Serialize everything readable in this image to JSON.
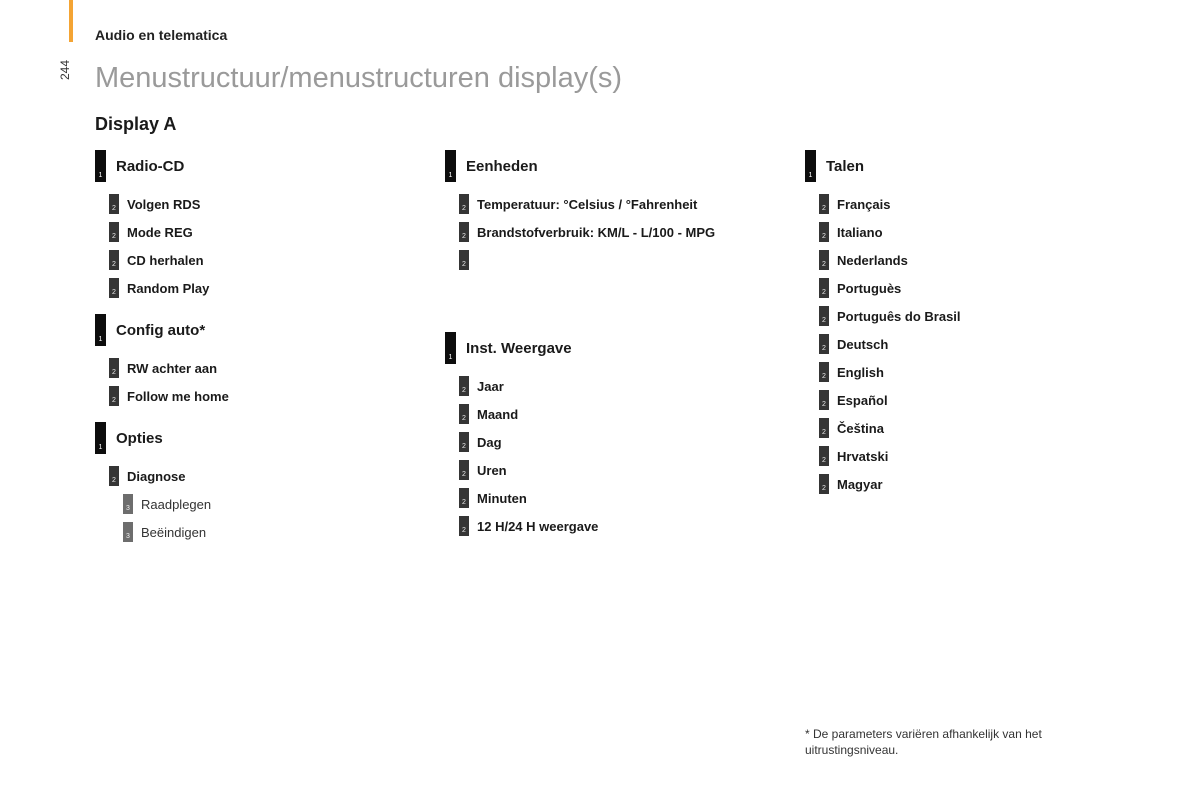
{
  "page_number": "244",
  "section_header": "Audio en telematica",
  "main_title": "Menustructuur/menustructuren display(s)",
  "display_title": "Display A",
  "columns": [
    {
      "groups": [
        {
          "title": "Radio-CD",
          "items": [
            {
              "level": 2,
              "label": "Volgen RDS"
            },
            {
              "level": 2,
              "label": "Mode REG"
            },
            {
              "level": 2,
              "label": "CD herhalen"
            },
            {
              "level": 2,
              "label": "Random Play"
            }
          ]
        },
        {
          "title": "Config auto*",
          "items": [
            {
              "level": 2,
              "label": "RW achter aan"
            },
            {
              "level": 2,
              "label": "Follow me home"
            }
          ]
        },
        {
          "title": "Opties",
          "items": [
            {
              "level": 2,
              "label": "Diagnose"
            },
            {
              "level": 3,
              "label": "Raadplegen"
            },
            {
              "level": 3,
              "label": "Beëindigen"
            }
          ]
        }
      ]
    },
    {
      "groups": [
        {
          "title": "Eenheden",
          "items": [
            {
              "level": 2,
              "label": "Temperatuur: °Celsius / °Fahrenheit"
            },
            {
              "level": 2,
              "label": "Brandstofverbruik: KM/L - L/100 - MPG"
            },
            {
              "level": 2,
              "label": ""
            }
          ]
        },
        {
          "title": "Inst. Weergave",
          "items": [
            {
              "level": 2,
              "label": "Jaar"
            },
            {
              "level": 2,
              "label": "Maand"
            },
            {
              "level": 2,
              "label": "Dag"
            },
            {
              "level": 2,
              "label": "Uren"
            },
            {
              "level": 2,
              "label": "Minuten"
            },
            {
              "level": 2,
              "label": "12 H/24 H weergave"
            }
          ],
          "padTop": 62
        }
      ]
    },
    {
      "groups": [
        {
          "title": "Talen",
          "items": [
            {
              "level": 2,
              "label": "Français"
            },
            {
              "level": 2,
              "label": "Italiano"
            },
            {
              "level": 2,
              "label": "Nederlands"
            },
            {
              "level": 2,
              "label": "Portuguès"
            },
            {
              "level": 2,
              "label": "Português do Brasil"
            },
            {
              "level": 2,
              "label": "Deutsch"
            },
            {
              "level": 2,
              "label": "English"
            },
            {
              "level": 2,
              "label": "Español"
            },
            {
              "level": 2,
              "label": "Čeština"
            },
            {
              "level": 2,
              "label": "Hrvatski"
            },
            {
              "level": 2,
              "label": "Magyar"
            }
          ]
        }
      ]
    }
  ],
  "footnote": "* De parameters variëren afhankelijk van het uitrustingsniveau.",
  "colors": {
    "side_tab": "#f4a434",
    "title_gray": "#9a9a9a",
    "badge1": "#0d0d0d",
    "badge2": "#353535",
    "badge3": "#6d6d6d"
  }
}
